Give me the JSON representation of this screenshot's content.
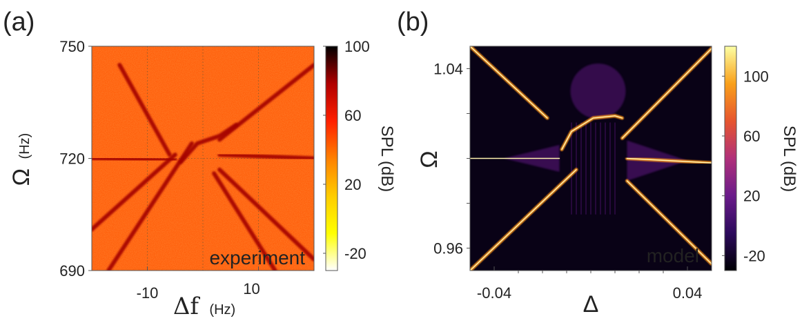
{
  "chart_data": [
    {
      "panel_label": "(a)",
      "type": "heatmap",
      "title": "",
      "annotation": "experiment",
      "xlabel_symbol": "Δf",
      "xlabel_unit": "(Hz)",
      "ylabel_symbol": "Ω",
      "ylabel_unit": "(Hz)",
      "xlim": [
        -20,
        20
      ],
      "ylim": [
        690,
        750
      ],
      "x_ticks": [
        -10,
        10
      ],
      "x_tick_labels": [
        "-10",
        "10"
      ],
      "y_ticks": [
        690,
        720,
        750
      ],
      "y_tick_labels": [
        "690",
        "720",
        "750"
      ],
      "grid": true,
      "colorbar": {
        "label": "SPL (dB)",
        "range": [
          -30,
          100
        ],
        "ticks": [
          100,
          60,
          20,
          -20
        ],
        "tick_labels": [
          "100",
          "60",
          "20",
          "-20"
        ],
        "colormap": [
          "#ffffff",
          "#ffff00",
          "#ffcc00",
          "#ff8000",
          "#ff2000",
          "#b00000",
          "#000000"
        ]
      },
      "background_level_db": 45,
      "line_level_db": 80,
      "lines": [
        {
          "name": "horizontal-left",
          "points": [
            [
              -20,
              720
            ],
            [
              -5,
              719.5
            ]
          ]
        },
        {
          "name": "horizontal-right",
          "points": [
            [
              3,
              721
            ],
            [
              20,
              720
            ]
          ]
        },
        {
          "name": "diagonal-up-left",
          "points": [
            [
              -15,
              745
            ],
            [
              -6,
              721
            ]
          ]
        },
        {
          "name": "diagonal-up-right",
          "points": [
            [
              3,
              725
            ],
            [
              20,
              745
            ]
          ]
        },
        {
          "name": "diagonal-down-left",
          "points": [
            [
              -20,
              701
            ],
            [
              -5,
              721
            ]
          ]
        },
        {
          "name": "diagonal-down-right",
          "points": [
            [
              3,
              717
            ],
            [
              20,
              693
            ]
          ]
        },
        {
          "name": "steep-left",
          "points": [
            [
              -17,
              690
            ],
            [
              -2,
              724
            ]
          ]
        },
        {
          "name": "steep-right",
          "points": [
            [
              2,
              716
            ],
            [
              13,
              690
            ]
          ]
        },
        {
          "name": "anticrossing-arc",
          "points": [
            [
              -4,
              719
            ],
            [
              -1,
              724
            ],
            [
              3,
              726
            ],
            [
              6,
              729
            ]
          ]
        }
      ]
    },
    {
      "panel_label": "(b)",
      "type": "heatmap",
      "title": "",
      "annotation": "model",
      "xlabel_symbol": "Δ",
      "ylabel_symbol": "Ω",
      "xlim": [
        -0.05,
        0.05
      ],
      "ylim": [
        0.95,
        1.05
      ],
      "x_ticks": [
        -0.04,
        0.04
      ],
      "x_tick_labels": [
        "-0.04",
        "0.04"
      ],
      "y_ticks": [
        0.96,
        1.04
      ],
      "y_tick_labels": [
        "0.96",
        "1.04"
      ],
      "grid": false,
      "colorbar": {
        "label": "SPL (dB)",
        "range": [
          -30,
          120
        ],
        "ticks": [
          100,
          60,
          20,
          -20
        ],
        "tick_labels": [
          "100",
          "60",
          "20",
          "-20"
        ],
        "colormap": [
          "#000004",
          "#2c0a5c",
          "#6a1b8a",
          "#b0307a",
          "#e6552e",
          "#f9a01a",
          "#fcffa4"
        ]
      },
      "background_level_db": -25,
      "line_level_db": 90,
      "lines": [
        {
          "name": "horizontal-left",
          "points": [
            [
              -0.05,
              1.0
            ],
            [
              -0.013,
              1.0
            ]
          ]
        },
        {
          "name": "horizontal-right",
          "points": [
            [
              0.015,
              1.0
            ],
            [
              0.05,
              0.998
            ]
          ]
        },
        {
          "name": "diagonal-up-right",
          "points": [
            [
              0.013,
              1.009
            ],
            [
              0.05,
              1.049
            ]
          ]
        },
        {
          "name": "diagonal-down-left",
          "points": [
            [
              -0.05,
              0.95
            ],
            [
              -0.006,
              0.995
            ]
          ]
        },
        {
          "name": "diagonal-up-left",
          "points": [
            [
              -0.05,
              1.05
            ],
            [
              -0.018,
              1.018
            ]
          ]
        },
        {
          "name": "diagonal-down-right",
          "points": [
            [
              0.015,
              0.99
            ],
            [
              0.05,
              0.953
            ]
          ]
        },
        {
          "name": "top-plateau",
          "points": [
            [
              -0.012,
              1.004
            ],
            [
              -0.008,
              1.012
            ],
            [
              0.001,
              1.018
            ],
            [
              0.01,
              1.019
            ],
            [
              0.013,
              1.018
            ]
          ]
        }
      ]
    }
  ]
}
